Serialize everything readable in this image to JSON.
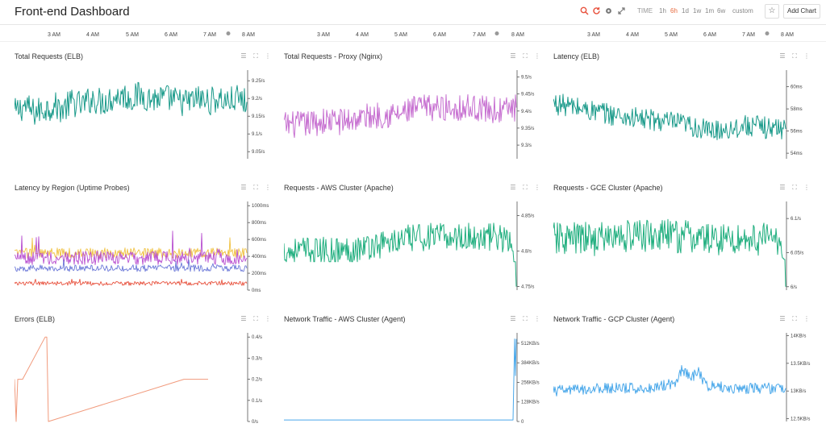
{
  "header": {
    "title": "Front-end Dashboard",
    "time_label": "TIME",
    "ranges": [
      "1h",
      "6h",
      "1d",
      "1w",
      "1m",
      "6w",
      "custom"
    ],
    "active_range": "6h",
    "add_chart_label": "Add Chart",
    "icons": [
      "search-icon",
      "refresh-icon",
      "gear-icon",
      "expand-icon",
      "star-icon"
    ]
  },
  "time_axis": {
    "ticks": [
      "3 AM",
      "4 AM",
      "5 AM",
      "6 AM",
      "7 AM",
      "8 AM"
    ]
  },
  "accent_colors": {
    "teal": "#1a9a8a",
    "magenta": "#c66ed0",
    "green": "#1fae7e",
    "orange": "#f19a7c",
    "blue": "#4aa8ea",
    "active_range": "#e86a3e"
  },
  "panels": [
    {
      "title": "Total Requests (ELB)",
      "chart_data": {
        "type": "line",
        "y_ticks": [
          "9.25/s",
          "9.2/s",
          "9.15/s",
          "9.1/s",
          "9.05/s"
        ],
        "ylim": [
          9.03,
          9.28
        ],
        "series": [
          {
            "color": "#1a9a8a",
            "points": [
              [
                0,
                9.16
              ],
              [
                12,
                9.18
              ],
              [
                24,
                9.16
              ],
              [
                36,
                9.17
              ],
              [
                48,
                9.18
              ],
              [
                60,
                9.17
              ],
              [
                72,
                9.19
              ],
              [
                84,
                9.18
              ],
              [
                96,
                9.2
              ],
              [
                108,
                9.19
              ],
              [
                120,
                9.2
              ],
              [
                132,
                9.21
              ],
              [
                144,
                9.2
              ],
              [
                156,
                9.21
              ],
              [
                168,
                9.2
              ],
              [
                180,
                9.2
              ],
              [
                192,
                9.2
              ],
              [
                204,
                9.19
              ],
              [
                216,
                9.19
              ],
              [
                228,
                9.2
              ],
              [
                240,
                9.19
              ],
              [
                252,
                9.2
              ],
              [
                264,
                9.19
              ],
              [
                276,
                9.2
              ],
              [
                288,
                9.19
              ]
            ],
            "noise": 0.04,
            "min": 9.08,
            "max": 9.27
          }
        ]
      }
    },
    {
      "title": "Total Requests - Proxy (Nginx)",
      "chart_data": {
        "type": "line",
        "y_ticks": [
          "9.5/s",
          "9.45/s",
          "9.4/s",
          "9.35/s",
          "9.3/s"
        ],
        "ylim": [
          9.26,
          9.52
        ],
        "series": [
          {
            "color": "#c66ed0",
            "points": [
              [
                0,
                9.36
              ],
              [
                24,
                9.36
              ],
              [
                48,
                9.37
              ],
              [
                72,
                9.37
              ],
              [
                96,
                9.38
              ],
              [
                120,
                9.39
              ],
              [
                144,
                9.39
              ],
              [
                168,
                9.41
              ],
              [
                192,
                9.41
              ],
              [
                216,
                9.41
              ],
              [
                240,
                9.41
              ],
              [
                264,
                9.4
              ],
              [
                288,
                9.41
              ]
            ],
            "noise": 0.04,
            "min": 9.28,
            "max": 9.5
          }
        ]
      }
    },
    {
      "title": "Latency (ELB)",
      "chart_data": {
        "type": "line",
        "y_ticks": [
          "60ms",
          "58ms",
          "56ms",
          "54ms"
        ],
        "ylim": [
          53.5,
          61.5
        ],
        "series": [
          {
            "color": "#1a9a8a",
            "points": [
              [
                0,
                58.5
              ],
              [
                24,
                58.2
              ],
              [
                48,
                57.8
              ],
              [
                72,
                57.5
              ],
              [
                96,
                57.2
              ],
              [
                120,
                57.0
              ],
              [
                144,
                56.8
              ],
              [
                168,
                56.5
              ],
              [
                192,
                56.0
              ],
              [
                216,
                56.2
              ],
              [
                240,
                56.5
              ],
              [
                264,
                56.3
              ],
              [
                288,
                56.2
              ]
            ],
            "noise": 1.0,
            "min": 54.2,
            "max": 60.6
          }
        ]
      }
    },
    {
      "title": "Latency by Region (Uptime Probes)",
      "chart_data": {
        "type": "line",
        "y_ticks": [
          "1000ms",
          "800ms",
          "600ms",
          "400ms",
          "200ms",
          "0ms"
        ],
        "ylim": [
          0,
          1050
        ],
        "series": [
          {
            "name": "",
            "color": "#f0c242",
            "points": [
              [
                0,
                440
              ],
              [
                288,
                440
              ]
            ],
            "noise": 60,
            "min": 300,
            "max": 650
          },
          {
            "name": "",
            "color": "#b84fd0",
            "points": [
              [
                0,
                380
              ],
              [
                288,
                380
              ]
            ],
            "noise": 80,
            "min": 280,
            "max": 980
          },
          {
            "name": "",
            "color": "#6b78d8",
            "points": [
              [
                0,
                260
              ],
              [
                288,
                260
              ]
            ],
            "noise": 40,
            "min": 180,
            "max": 360
          },
          {
            "name": "",
            "color": "#e8533f",
            "points": [
              [
                0,
                80
              ],
              [
                288,
                80
              ]
            ],
            "noise": 25,
            "min": 30,
            "max": 130
          }
        ]
      }
    },
    {
      "title": "Requests - AWS Cluster (Apache)",
      "chart_data": {
        "type": "line",
        "y_ticks": [
          "4.85/s",
          "4.8/s",
          "4.75/s"
        ],
        "ylim": [
          4.745,
          4.87
        ],
        "series": [
          {
            "color": "#1fae7e",
            "points": [
              [
                0,
                4.8
              ],
              [
                24,
                4.8
              ],
              [
                48,
                4.8
              ],
              [
                72,
                4.8
              ],
              [
                96,
                4.805
              ],
              [
                120,
                4.81
              ],
              [
                144,
                4.815
              ],
              [
                168,
                4.82
              ],
              [
                192,
                4.82
              ],
              [
                216,
                4.82
              ],
              [
                240,
                4.82
              ],
              [
                264,
                4.82
              ],
              [
                280,
                4.815
              ],
              [
                288,
                4.75
              ]
            ],
            "noise": 0.02,
            "min": 4.785,
            "max": 4.855
          }
        ]
      }
    },
    {
      "title": "Requests - GCE Cluster (Apache)",
      "chart_data": {
        "type": "line",
        "y_ticks": [
          "6.1/s",
          "6.05/s",
          "6/s"
        ],
        "ylim": [
          5.995,
          6.125
        ],
        "series": [
          {
            "color": "#1fae7e",
            "points": [
              [
                0,
                6.07
              ],
              [
                48,
                6.07
              ],
              [
                96,
                6.075
              ],
              [
                144,
                6.075
              ],
              [
                192,
                6.07
              ],
              [
                240,
                6.07
              ],
              [
                280,
                6.07
              ],
              [
                288,
                6.0
              ]
            ],
            "noise": 0.025,
            "min": 6.04,
            "max": 6.115
          }
        ]
      }
    },
    {
      "title": "Errors (ELB)",
      "chart_data": {
        "type": "line",
        "y_ticks": [
          "0.4/s",
          "0.3/s",
          "0.2/s",
          "0.1/s",
          "0/s"
        ],
        "ylim": [
          0,
          0.42
        ],
        "series": [
          {
            "color": "#f19a7c",
            "points": [
              [
                0,
                0.2
              ],
              [
                2,
                0
              ],
              [
                4,
                0.2
              ],
              [
                10,
                0.2
              ],
              [
                38,
                0.4
              ],
              [
                40,
                0.4
              ],
              [
                42,
                0
              ],
              [
                210,
                0.2
              ],
              [
                240,
                0.2
              ]
            ],
            "noise": 0,
            "min": 0,
            "max": 0.42
          }
        ]
      }
    },
    {
      "title": "Network Traffic - AWS Cluster (Agent)",
      "chart_data": {
        "type": "line",
        "y_ticks": [
          "512KB/s",
          "384KB/s",
          "256KB/s",
          "128KB/s",
          "0"
        ],
        "ylim": [
          0,
          580
        ],
        "series": [
          {
            "color": "#4aa8ea",
            "points": [
              [
                0,
                10
              ],
              [
                284,
                10
              ],
              [
                286,
                540
              ],
              [
                287,
                300
              ],
              [
                288,
                540
              ]
            ],
            "noise": 0,
            "min": 0,
            "max": 580
          }
        ]
      }
    },
    {
      "title": "Network Traffic - GCP Cluster (Agent)",
      "chart_data": {
        "type": "line",
        "y_ticks": [
          "14KB/s",
          "13.5KB/s",
          "13KB/s",
          "12.5KB/s"
        ],
        "ylim": [
          12.45,
          14.05
        ],
        "series": [
          {
            "color": "#4aa8ea",
            "points": [
              [
                0,
                13.0
              ],
              [
                60,
                13.05
              ],
              [
                120,
                13.05
              ],
              [
                150,
                13.15
              ],
              [
                160,
                13.4
              ],
              [
                172,
                13.25
              ],
              [
                180,
                13.35
              ],
              [
                190,
                13.1
              ],
              [
                220,
                13.05
              ],
              [
                288,
                13.05
              ]
            ],
            "noise": 0.1,
            "min": 12.75,
            "max": 13.7
          }
        ]
      }
    }
  ]
}
